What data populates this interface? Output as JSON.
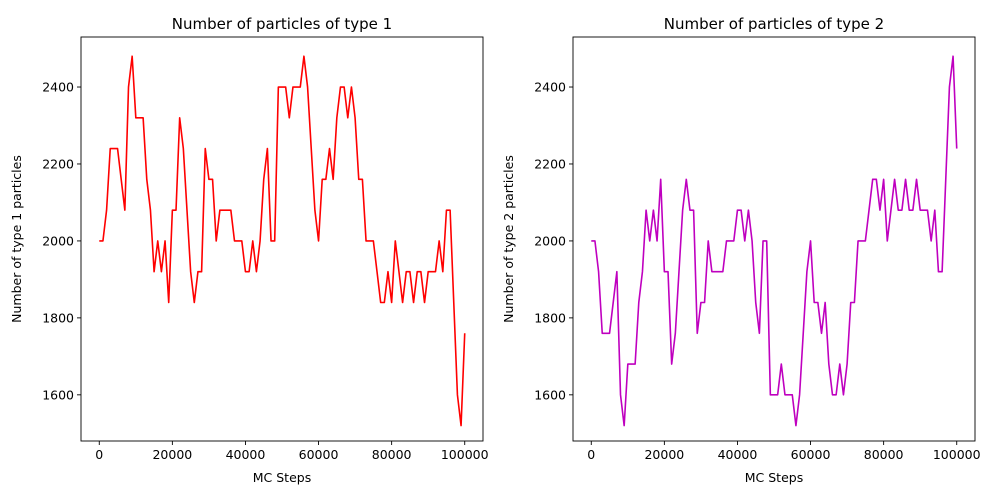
{
  "chart_data": [
    {
      "type": "line",
      "title": "Number of particles of type 1",
      "xlabel": "MC Steps",
      "ylabel": "Number of type 1 particles",
      "xlim": [
        -5000,
        105000
      ],
      "ylim": [
        1480,
        2530
      ],
      "xticks": [
        0,
        20000,
        40000,
        60000,
        80000,
        100000
      ],
      "yticks": [
        1600,
        1800,
        2000,
        2200,
        2400
      ],
      "color": "#ff0000",
      "grid": false,
      "series": [
        {
          "x": [
            0,
            1000,
            2000,
            3000,
            4000,
            5000,
            6000,
            7000,
            8000,
            9000,
            10000,
            11000,
            12000,
            13000,
            14000,
            15000,
            16000,
            17000,
            18000,
            19000,
            20000,
            21000,
            22000,
            23000,
            24000,
            25000,
            26000,
            27000,
            28000,
            29000,
            30000,
            31000,
            32000,
            33000,
            34000,
            35000,
            36000,
            37000,
            38000,
            39000,
            40000,
            41000,
            42000,
            43000,
            44000,
            45000,
            46000,
            47000,
            48000,
            49000,
            50000,
            51000,
            52000,
            53000,
            54000,
            55000,
            56000,
            57000,
            58000,
            59000,
            60000,
            61000,
            62000,
            63000,
            64000,
            65000,
            66000,
            67000,
            68000,
            69000,
            70000,
            71000,
            72000,
            73000,
            74000,
            75000,
            76000,
            77000,
            78000,
            79000,
            80000,
            81000,
            82000,
            83000,
            84000,
            85000,
            86000,
            87000,
            88000,
            89000,
            90000,
            91000,
            92000,
            93000,
            94000,
            95000,
            96000,
            97000,
            98000,
            99000,
            100000
          ],
          "y": [
            2000,
            2000,
            2080,
            2240,
            2240,
            2240,
            2160,
            2080,
            2400,
            2480,
            2320,
            2320,
            2320,
            2160,
            2080,
            1920,
            2000,
            1920,
            2000,
            1840,
            2080,
            2080,
            2320,
            2240,
            2080,
            1920,
            1840,
            1920,
            1920,
            2240,
            2160,
            2160,
            2000,
            2080,
            2080,
            2080,
            2080,
            2000,
            2000,
            2000,
            1920,
            1920,
            2000,
            1920,
            2000,
            2160,
            2240,
            2000,
            2000,
            2400,
            2400,
            2400,
            2320,
            2400,
            2400,
            2400,
            2480,
            2400,
            2240,
            2080,
            2000,
            2160,
            2160,
            2240,
            2160,
            2320,
            2400,
            2400,
            2320,
            2400,
            2320,
            2160,
            2160,
            2000,
            2000,
            2000,
            1920,
            1840,
            1840,
            1920,
            1840,
            2000,
            1920,
            1840,
            1920,
            1920,
            1840,
            1920,
            1920,
            1840,
            1920,
            1920,
            1920,
            2000,
            1920,
            2080,
            2080,
            1840,
            1600,
            1520,
            1760
          ]
        }
      ]
    },
    {
      "type": "line",
      "title": "Number of particles of type 2",
      "xlabel": "MC Steps",
      "ylabel": "Number of type 2 particles",
      "xlim": [
        -5000,
        105000
      ],
      "ylim": [
        1480,
        2530
      ],
      "xticks": [
        0,
        20000,
        40000,
        60000,
        80000,
        100000
      ],
      "yticks": [
        1600,
        1800,
        2000,
        2200,
        2400
      ],
      "color": "#bf00bf",
      "grid": false,
      "series": [
        {
          "x": [
            0,
            1000,
            2000,
            3000,
            4000,
            5000,
            6000,
            7000,
            8000,
            9000,
            10000,
            11000,
            12000,
            13000,
            14000,
            15000,
            16000,
            17000,
            18000,
            19000,
            20000,
            21000,
            22000,
            23000,
            24000,
            25000,
            26000,
            27000,
            28000,
            29000,
            30000,
            31000,
            32000,
            33000,
            34000,
            35000,
            36000,
            37000,
            38000,
            39000,
            40000,
            41000,
            42000,
            43000,
            44000,
            45000,
            46000,
            47000,
            48000,
            49000,
            50000,
            51000,
            52000,
            53000,
            54000,
            55000,
            56000,
            57000,
            58000,
            59000,
            60000,
            61000,
            62000,
            63000,
            64000,
            65000,
            66000,
            67000,
            68000,
            69000,
            70000,
            71000,
            72000,
            73000,
            74000,
            75000,
            76000,
            77000,
            78000,
            79000,
            80000,
            81000,
            82000,
            83000,
            84000,
            85000,
            86000,
            87000,
            88000,
            89000,
            90000,
            91000,
            92000,
            93000,
            94000,
            95000,
            96000,
            97000,
            98000,
            99000,
            100000
          ],
          "y": [
            2000,
            2000,
            1920,
            1760,
            1760,
            1760,
            1840,
            1920,
            1600,
            1520,
            1680,
            1680,
            1680,
            1840,
            1920,
            2080,
            2000,
            2080,
            2000,
            2160,
            1920,
            1920,
            1680,
            1760,
            1920,
            2080,
            2160,
            2080,
            2080,
            1760,
            1840,
            1840,
            2000,
            1920,
            1920,
            1920,
            1920,
            2000,
            2000,
            2000,
            2080,
            2080,
            2000,
            2080,
            2000,
            1840,
            1760,
            2000,
            2000,
            1600,
            1600,
            1600,
            1680,
            1600,
            1600,
            1600,
            1520,
            1600,
            1760,
            1920,
            2000,
            1840,
            1840,
            1760,
            1840,
            1680,
            1600,
            1600,
            1680,
            1600,
            1680,
            1840,
            1840,
            2000,
            2000,
            2000,
            2080,
            2160,
            2160,
            2080,
            2160,
            2000,
            2080,
            2160,
            2080,
            2080,
            2160,
            2080,
            2080,
            2160,
            2080,
            2080,
            2080,
            2000,
            2080,
            1920,
            1920,
            2160,
            2400,
            2480,
            2240
          ]
        }
      ]
    }
  ]
}
